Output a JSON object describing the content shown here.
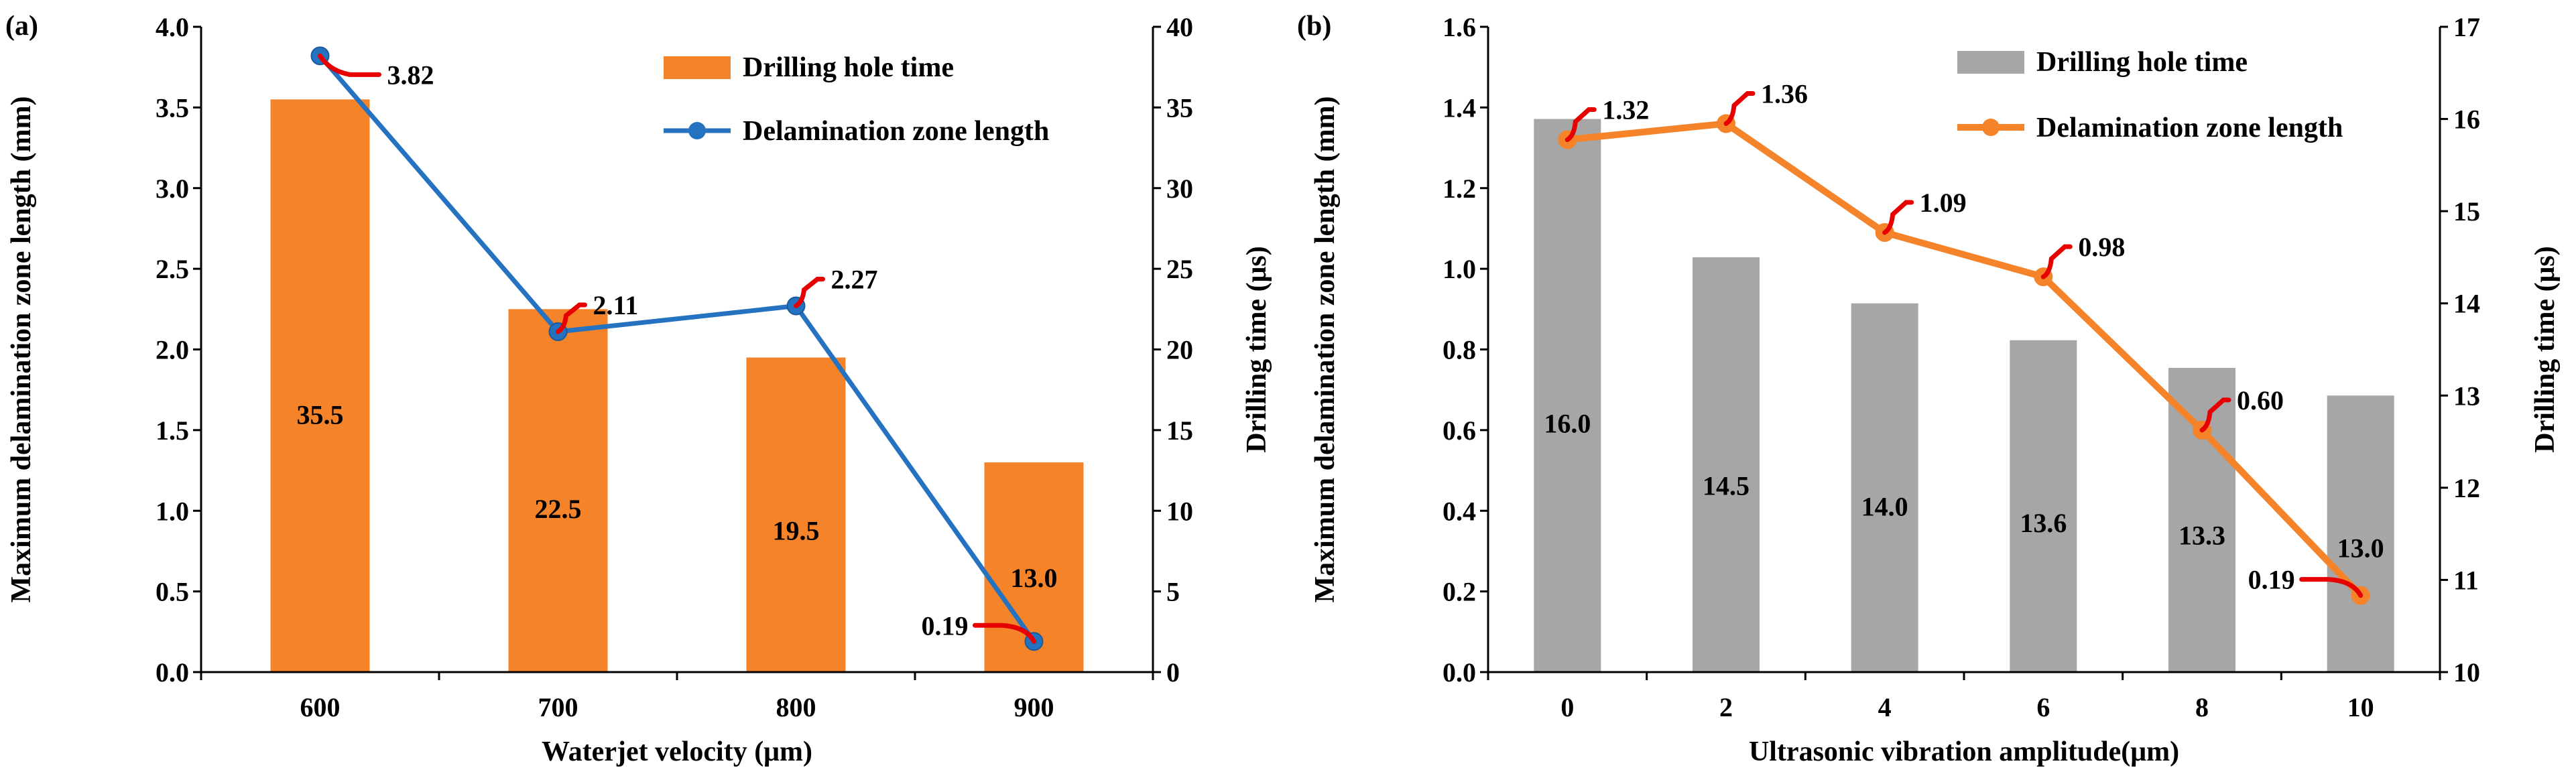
{
  "chart_data": [
    {
      "type": "bar+line",
      "panel_label": "(a)",
      "categories": [
        "600",
        "700",
        "800",
        "900"
      ],
      "xlabel": "Waterjet velocity (μm)",
      "ylabel_left": "Maximum delamination zone length (mm)",
      "ylabel_right": "Drilling time (μs)",
      "ylim_left": [
        0,
        4.0
      ],
      "ylim_right": [
        0,
        40
      ],
      "left_ticks": [
        "0.0",
        "0.5",
        "1.0",
        "1.5",
        "2.0",
        "2.5",
        "3.0",
        "3.5",
        "4.0"
      ],
      "right_ticks": [
        "0",
        "5",
        "10",
        "15",
        "20",
        "25",
        "30",
        "35",
        "40"
      ],
      "legend_position": "top-right",
      "bars": {
        "name": "Drilling hole time",
        "color": "#F4832A",
        "axis": "right",
        "values": [
          35.5,
          22.5,
          19.5,
          13.0
        ],
        "labels": [
          "35.5",
          "22.5",
          "19.5",
          "13.0"
        ]
      },
      "line": {
        "name": "Delamination zone length",
        "color": "#2572C0",
        "axis": "left",
        "values": [
          3.82,
          2.11,
          2.27,
          0.19
        ],
        "labels": [
          "3.82",
          "2.11",
          "2.27",
          "0.19"
        ]
      },
      "annotation_color": "#E60000"
    },
    {
      "type": "bar+line",
      "panel_label": "(b)",
      "categories": [
        "0",
        "2",
        "4",
        "6",
        "8",
        "10"
      ],
      "xlabel": "Ultrasonic vibration amplitude(μm)",
      "ylabel_left": "Maximum delamination zone length (mm)",
      "ylabel_right": "Drilling time (μs)",
      "ylim_left": [
        0,
        1.6
      ],
      "ylim_right": [
        10,
        17
      ],
      "left_ticks": [
        "0.0",
        "0.2",
        "0.4",
        "0.6",
        "0.8",
        "1.0",
        "1.2",
        "1.4",
        "1.6"
      ],
      "right_ticks": [
        "10",
        "11",
        "12",
        "13",
        "14",
        "15",
        "16",
        "17"
      ],
      "legend_position": "top-right",
      "bars": {
        "name": "Drilling hole time",
        "color": "#A6A6A6",
        "axis": "right",
        "values": [
          16.0,
          14.5,
          14.0,
          13.6,
          13.3,
          13.0
        ],
        "labels": [
          "16.0",
          "14.5",
          "14.0",
          "13.6",
          "13.3",
          "13.0"
        ]
      },
      "line": {
        "name": "Delamination zone length",
        "color": "#F4832A",
        "axis": "left",
        "values": [
          1.32,
          1.36,
          1.09,
          0.98,
          0.6,
          0.19
        ],
        "labels": [
          "1.32",
          "1.36",
          "1.09",
          "0.98",
          "0.60",
          "0.19"
        ]
      },
      "annotation_color": "#E60000"
    }
  ]
}
